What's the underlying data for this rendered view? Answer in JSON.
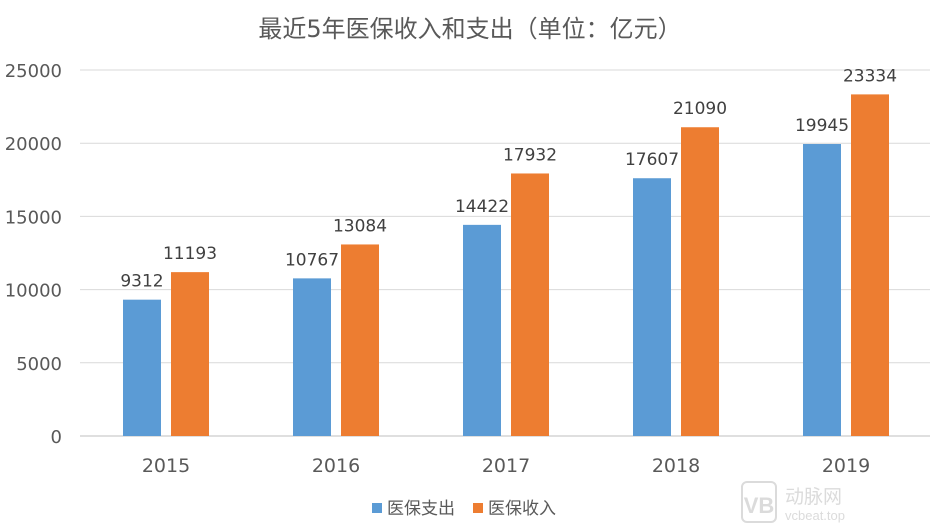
{
  "chart_data": {
    "type": "bar",
    "title": "最近5年医保收入和支出（单位：亿元）",
    "xlabel": "",
    "ylabel": "",
    "categories": [
      "2015",
      "2016",
      "2017",
      "2018",
      "2019"
    ],
    "series": [
      {
        "name": "医保支出",
        "color": "#5b9bd5",
        "values": [
          9312,
          10767,
          14422,
          17607,
          19945
        ]
      },
      {
        "name": "医保收入",
        "color": "#ed7d31",
        "values": [
          11193,
          13084,
          17932,
          21090,
          23334
        ]
      }
    ],
    "ylim": [
      0,
      25000
    ],
    "yticks": [
      0,
      5000,
      10000,
      15000,
      20000,
      25000
    ],
    "grid": true,
    "legend_position": "bottom",
    "data_labels": true
  },
  "watermark": {
    "logo_text": "动脉网",
    "url_text": "vcbeat.top"
  }
}
